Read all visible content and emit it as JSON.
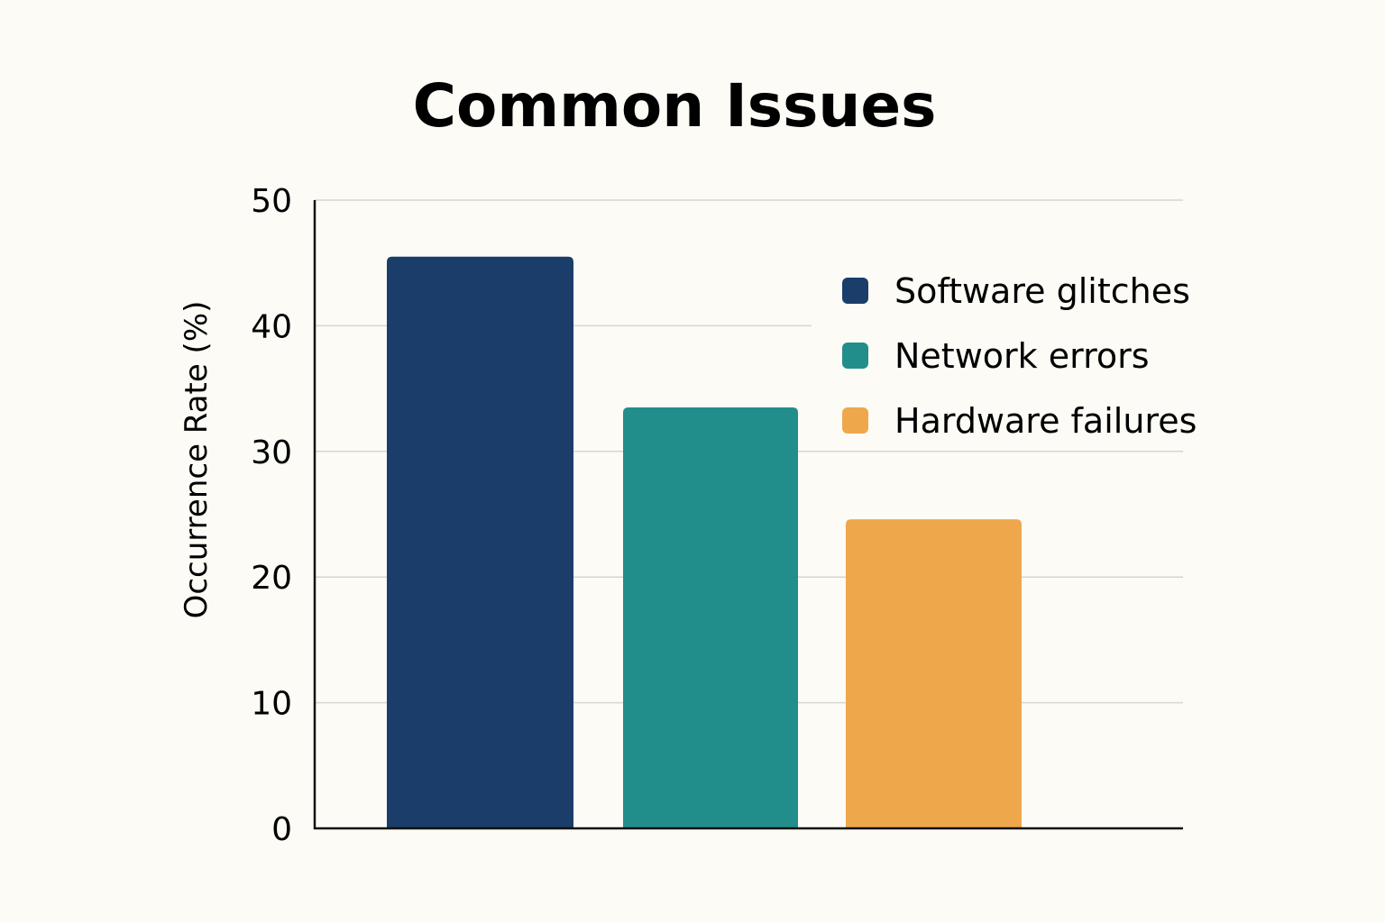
{
  "chart_data": {
    "type": "bar",
    "title": "Common Issues",
    "xlabel": "",
    "ylabel": "Occurrence Rate (%)",
    "ylim": [
      0,
      50
    ],
    "yticks": [
      0,
      10,
      20,
      30,
      40,
      50
    ],
    "grid": true,
    "legend_position": "top-right",
    "categories": [
      "Software glitches",
      "Network errors",
      "Hardware failures"
    ],
    "values": [
      45.5,
      33.5,
      24.6
    ],
    "colors": [
      "#1b3d6a",
      "#228e8c",
      "#eea84b"
    ]
  }
}
